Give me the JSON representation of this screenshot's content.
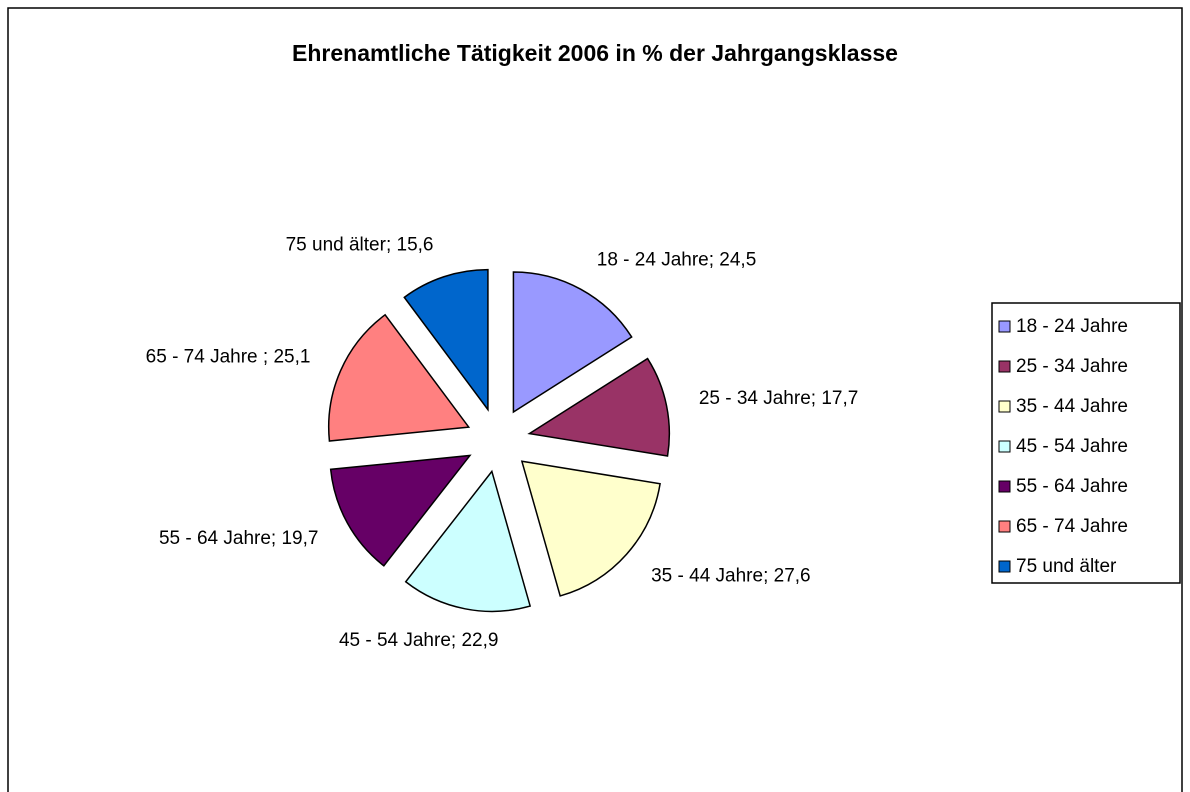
{
  "chart_data": {
    "type": "pie",
    "title": "Ehrenamtliche Tätigkeit 2006 in % der Jahrgangsklasse",
    "categories": [
      "18 - 24 Jahre",
      "25 - 34 Jahre",
      "35 - 44 Jahre",
      "45 - 54 Jahre",
      "55 - 64 Jahre",
      "65 - 74 Jahre",
      "75 und älter"
    ],
    "values": [
      24.5,
      17.7,
      27.6,
      22.9,
      19.7,
      25.1,
      15.6
    ],
    "value_labels": [
      "18 - 24 Jahre; 24,5",
      "25 - 34 Jahre; 17,7",
      "35 - 44 Jahre; 27,6",
      "45 - 54 Jahre; 22,9",
      "55 - 64 Jahre; 19,7",
      "65 - 74 Jahre ; 25,1",
      "75 und älter; 15,6"
    ],
    "colors": [
      "#9999ff",
      "#993366",
      "#ffffcc",
      "#ccffff",
      "#660066",
      "#ff8080",
      "#0066cc"
    ],
    "legend": "right"
  }
}
